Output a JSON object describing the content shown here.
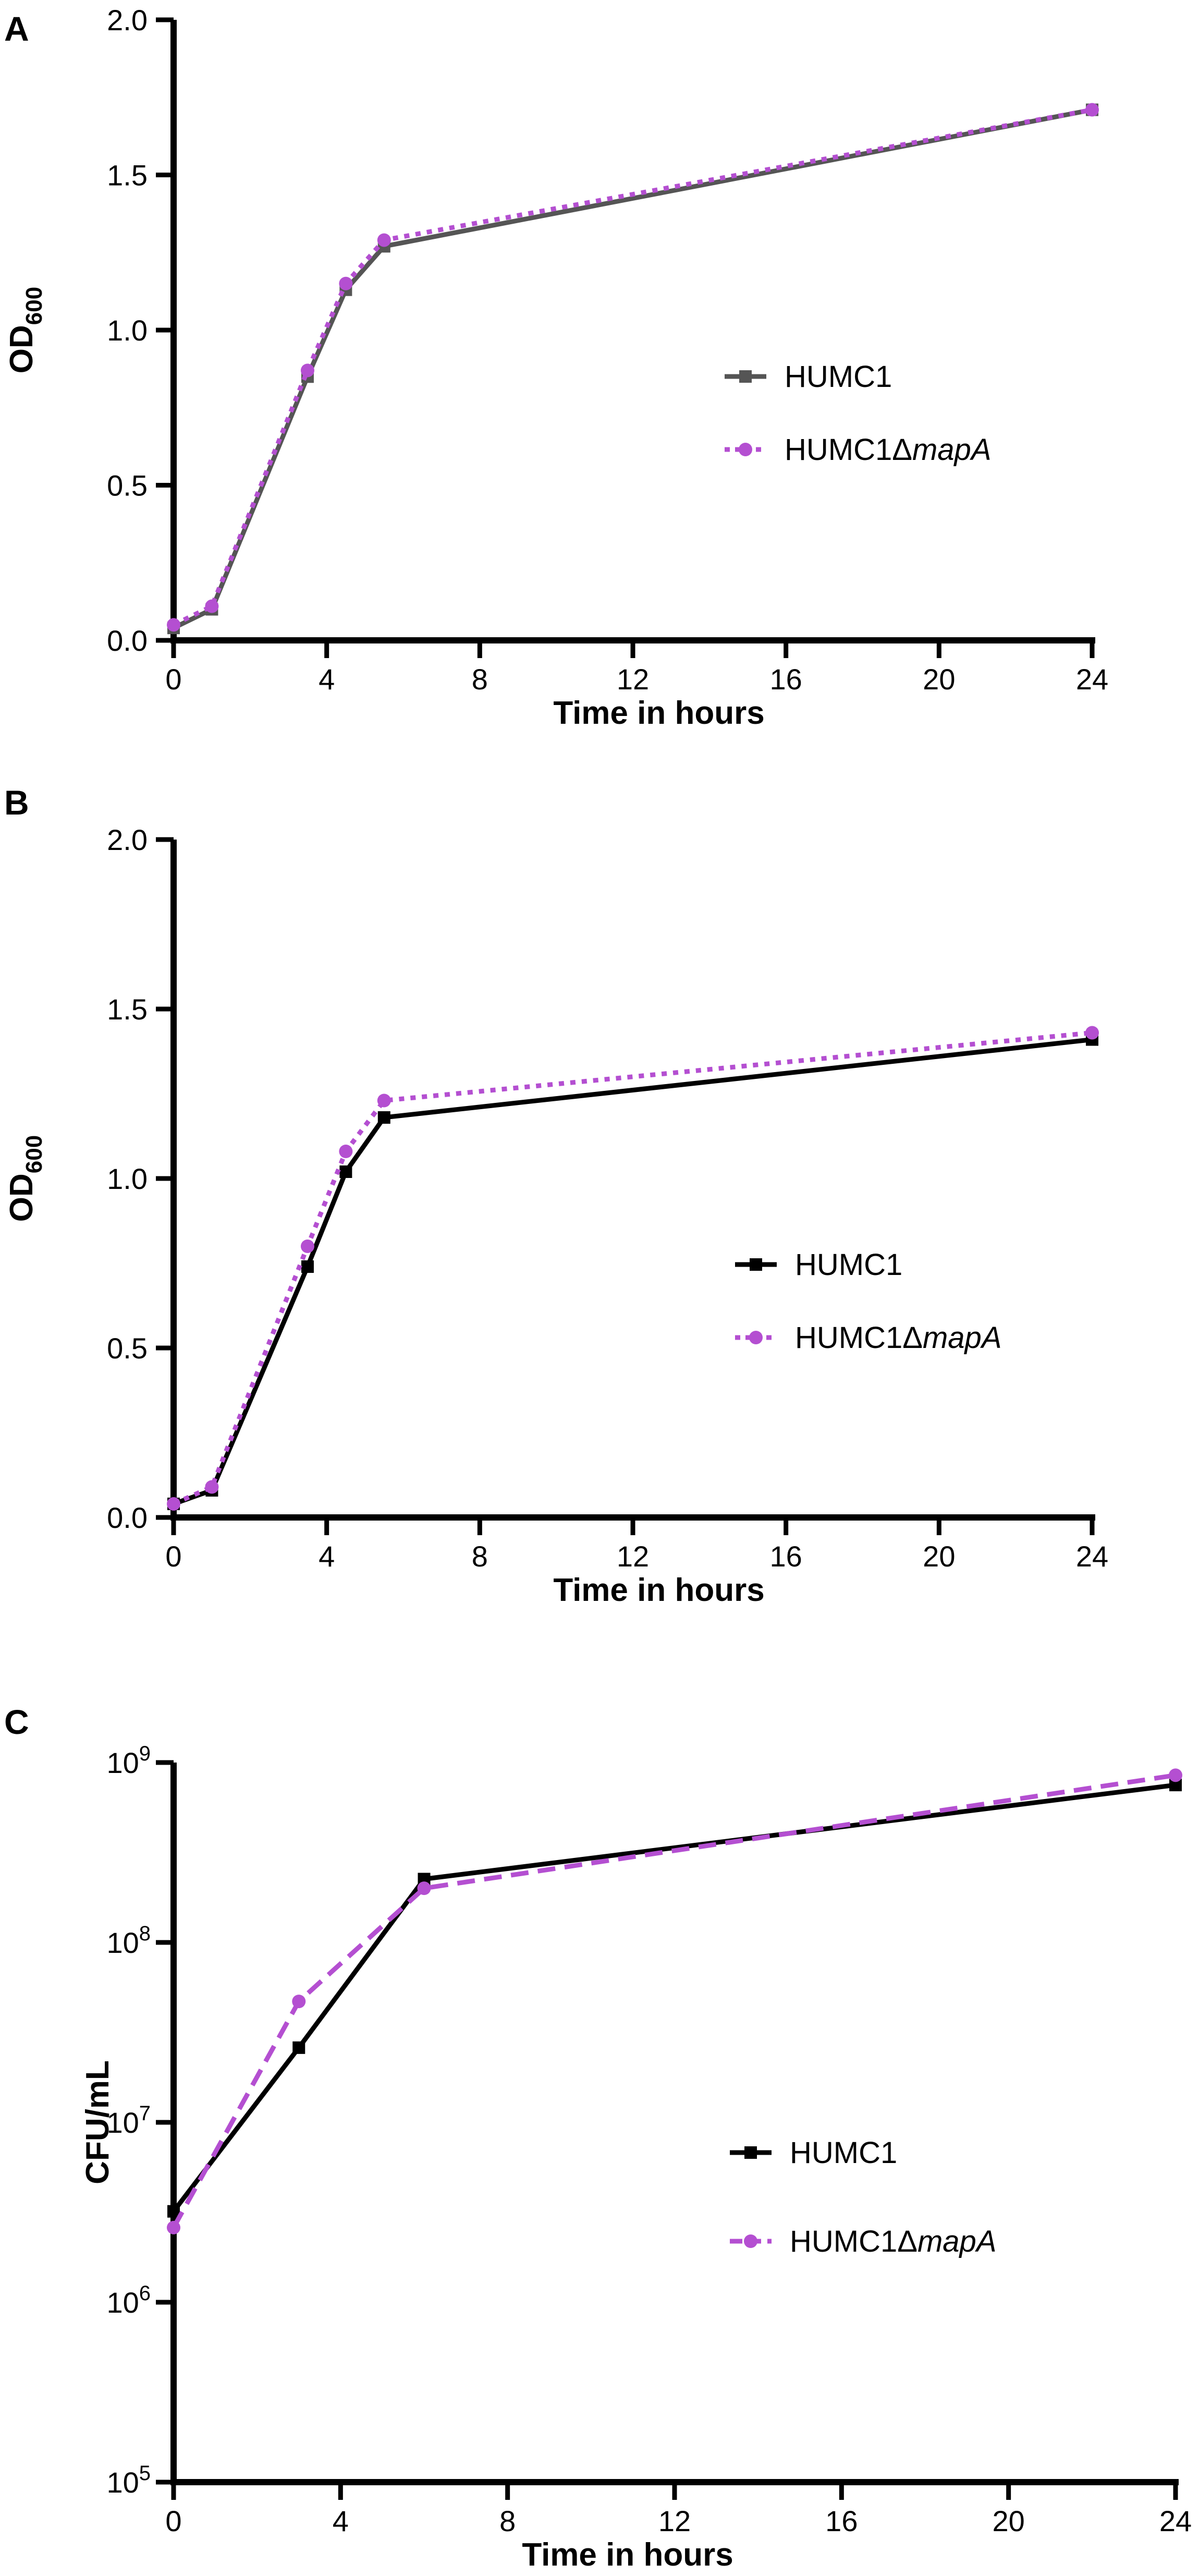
{
  "chart_data": [
    {
      "panel": "A",
      "type": "line",
      "xlabel": "Time in hours",
      "ylabel": "OD",
      "ylabel_sub": "600",
      "xlim": [
        0,
        24
      ],
      "ylim": [
        0,
        2.0
      ],
      "xticks": [
        0,
        4,
        8,
        12,
        16,
        20,
        24
      ],
      "yticks": [
        "0.0",
        "0.5",
        "1.0",
        "1.5",
        "2.0"
      ],
      "yscale": "linear",
      "legend_position": "center-right",
      "series": [
        {
          "name": "HUMC1",
          "color": "#555555",
          "line": "solid",
          "marker": "square",
          "x": [
            0,
            1,
            3.5,
            4.5,
            5.5,
            24
          ],
          "y": [
            0.04,
            0.1,
            0.85,
            1.13,
            1.27,
            1.71
          ]
        },
        {
          "name": "HUMC1Δ",
          "name_italic": "mapA",
          "color": "#b44fd1",
          "line": "dotted",
          "marker": "circle",
          "x": [
            0,
            1,
            3.5,
            4.5,
            5.5,
            24
          ],
          "y": [
            0.05,
            0.11,
            0.87,
            1.15,
            1.29,
            1.71
          ]
        }
      ]
    },
    {
      "panel": "B",
      "type": "line",
      "xlabel": "Time in hours",
      "ylabel": "OD",
      "ylabel_sub": "600",
      "xlim": [
        0,
        24
      ],
      "ylim": [
        0,
        2.0
      ],
      "xticks": [
        0,
        4,
        8,
        12,
        16,
        20,
        24
      ],
      "yticks": [
        "0.0",
        "0.5",
        "1.0",
        "1.5",
        "2.0"
      ],
      "yscale": "linear",
      "legend_position": "center-right",
      "series": [
        {
          "name": "HUMC1",
          "color": "#000000",
          "line": "solid",
          "marker": "square",
          "x": [
            0,
            1,
            3.5,
            4.5,
            5.5,
            24
          ],
          "y": [
            0.04,
            0.08,
            0.74,
            1.02,
            1.18,
            1.41
          ]
        },
        {
          "name": "HUMC1Δ",
          "name_italic": "mapA",
          "color": "#b44fd1",
          "line": "dotted",
          "marker": "circle",
          "x": [
            0,
            1,
            3.5,
            4.5,
            5.5,
            24
          ],
          "y": [
            0.04,
            0.09,
            0.8,
            1.08,
            1.23,
            1.43
          ]
        }
      ]
    },
    {
      "panel": "C",
      "type": "line",
      "xlabel": "Time in hours",
      "ylabel": "CFU/mL",
      "xlim": [
        0,
        24
      ],
      "ylim": [
        100000,
        1000000000
      ],
      "xticks": [
        0,
        4,
        8,
        12,
        16,
        20,
        24
      ],
      "yticks": [
        {
          "base": "10",
          "exp": "5",
          "value": 100000
        },
        {
          "base": "10",
          "exp": "6",
          "value": 1000000
        },
        {
          "base": "10",
          "exp": "7",
          "value": 10000000
        },
        {
          "base": "10",
          "exp": "8",
          "value": 100000000
        },
        {
          "base": "10",
          "exp": "9",
          "value": 1000000000
        }
      ],
      "yscale": "log",
      "legend_position": "center-right",
      "series": [
        {
          "name": "HUMC1",
          "color": "#000000",
          "line": "solid",
          "marker": "square",
          "x": [
            0,
            3,
            6,
            24
          ],
          "y": [
            3200000,
            26000000,
            225000000,
            750000000
          ]
        },
        {
          "name": "HUMC1Δ",
          "name_italic": "mapA",
          "color": "#b44fd1",
          "line": "dashed",
          "marker": "circle",
          "x": [
            0,
            3,
            6,
            24
          ],
          "y": [
            2600000,
            47000000,
            200000000,
            850000000
          ]
        }
      ]
    }
  ]
}
